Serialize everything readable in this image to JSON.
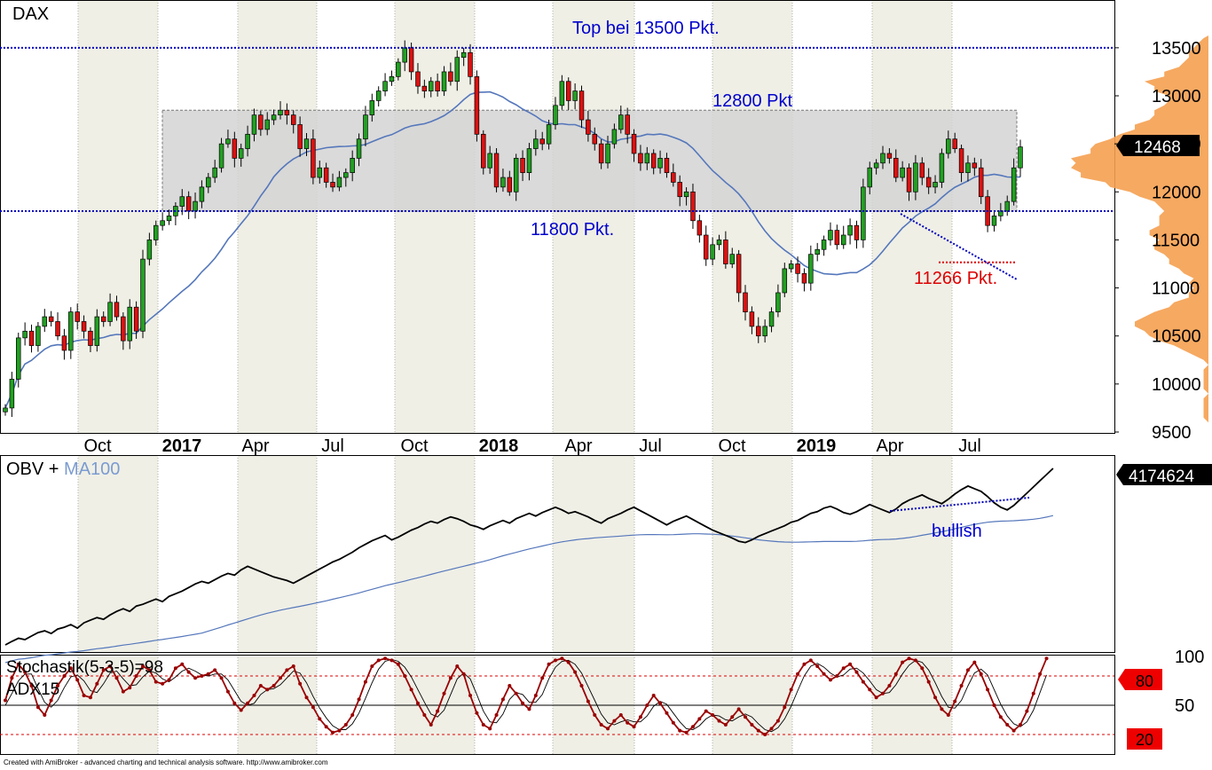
{
  "title": "DAX",
  "footer": "Created with AmiBroker - advanced charting and technical analysis software. http://www.amibroker.com",
  "colors": {
    "bull": "#22a022",
    "bear": "#dd1111",
    "ma": "#5577bb",
    "level_line": "#0000bb",
    "zone_fill": "#d4d4d4",
    "stochastic": "#990000",
    "profile": "#f5a050",
    "annotation_blue": "#0000cc",
    "annotation_red": "#dd0000"
  },
  "chart_data": [
    {
      "panel": "price",
      "type": "candlestick",
      "title": "DAX",
      "ylim": [
        9500,
        13700
      ],
      "y_ticks": [
        9500,
        10000,
        10500,
        11000,
        11500,
        12000,
        12500,
        13000,
        13500
      ],
      "x_labels": [
        "Oct",
        "2017",
        "Apr",
        "Jul",
        "Oct",
        "2018",
        "Apr",
        "Jul",
        "Oct",
        "2019",
        "Apr",
        "Jul"
      ],
      "x_labels_bold": [
        "2017",
        "2018",
        "2019"
      ],
      "last_value": "12468",
      "levels": [
        {
          "value": 13500,
          "label": "Top bei 13500 Pkt."
        },
        {
          "value": 11800,
          "label": "11800 Pkt."
        }
      ],
      "zone": {
        "low": 11800,
        "high": 12850,
        "label": "12800 Pkt"
      },
      "support_label": {
        "value": 11266,
        "label": "11266 Pkt."
      },
      "series": [
        {
          "name": "weekly_close",
          "values": [
            9750,
            10050,
            10480,
            10550,
            10400,
            10600,
            10700,
            10650,
            10500,
            10350,
            10750,
            10650,
            10550,
            10400,
            10700,
            10650,
            10850,
            10700,
            10450,
            10800,
            10550,
            11300,
            11500,
            11650,
            11700,
            11750,
            11850,
            11950,
            11800,
            11900,
            12050,
            12150,
            12250,
            12500,
            12550,
            12350,
            12450,
            12600,
            12800,
            12650,
            12750,
            12800,
            12850,
            12800,
            12700,
            12450,
            12550,
            12150,
            12250,
            12100,
            12050,
            12150,
            12200,
            12350,
            12550,
            12800,
            12950,
            13050,
            13150,
            13200,
            13350,
            13500,
            13250,
            13100,
            13050,
            13150,
            13050,
            13250,
            13150,
            13400,
            13450,
            13200,
            12600,
            12250,
            12400,
            12050,
            12150,
            12000,
            12350,
            12200,
            12450,
            12550,
            12500,
            12700,
            12900,
            13150,
            12950,
            13050,
            12750,
            12600,
            12500,
            12300,
            12500,
            12650,
            12800,
            12600,
            12400,
            12300,
            12400,
            12250,
            12350,
            12200,
            12100,
            11950,
            12000,
            11700,
            11550,
            11300,
            11450,
            11500,
            11250,
            11350,
            10950,
            10750,
            10600,
            10500,
            10600,
            10750,
            10950,
            11200,
            11250,
            11150,
            11050,
            11350,
            11400,
            11500,
            11600,
            11450,
            11550,
            11650,
            11500,
            12050,
            12250,
            12300,
            12400,
            12350,
            12150,
            12250,
            12000,
            12300,
            12150,
            12050,
            12100,
            12400,
            12550,
            12450,
            12200,
            12300,
            12250,
            11950,
            11650,
            11750,
            11800,
            11900,
            12250,
            12468
          ]
        }
      ]
    },
    {
      "panel": "obv",
      "type": "line",
      "title": "OBV",
      "title_suffix": "MA100",
      "last_value": "4174624",
      "annotation": "bullish",
      "series": [
        {
          "name": "OBV",
          "values": [
            20,
            28,
            35,
            32,
            40,
            48,
            52,
            46,
            56,
            60,
            66,
            58,
            70,
            76,
            82,
            78,
            88,
            96,
            102,
            96,
            108,
            112,
            118,
            124,
            118,
            130,
            136,
            142,
            150,
            158,
            164,
            160,
            168,
            176,
            182,
            178,
            190,
            198,
            192,
            186,
            180,
            174,
            170,
            166,
            160,
            168,
            176,
            184,
            192,
            200,
            208,
            214,
            222,
            230,
            240,
            248,
            256,
            262,
            268,
            258,
            264,
            272,
            280,
            286,
            294,
            300,
            296,
            304,
            310,
            306,
            300,
            292,
            288,
            282,
            290,
            296,
            302,
            296,
            306,
            312,
            318,
            312,
            320,
            326,
            332,
            326,
            318,
            322,
            316,
            310,
            302,
            296,
            306,
            312,
            318,
            326,
            332,
            324,
            316,
            308,
            300,
            292,
            300,
            306,
            312,
            304,
            296,
            288,
            280,
            274,
            268,
            262,
            255,
            252,
            258,
            266,
            272,
            278,
            284,
            290,
            298,
            302,
            310,
            318,
            322,
            330,
            334,
            328,
            320,
            316,
            322,
            330,
            338,
            332,
            326,
            320,
            328,
            340,
            348,
            354,
            360,
            352,
            346,
            340,
            350,
            362,
            372,
            380,
            374,
            368,
            356,
            342,
            332,
            326,
            336,
            350,
            364,
            378,
            392,
            406,
            420
          ]
        }
      ]
    },
    {
      "panel": "oscillator",
      "type": "line",
      "title": "Stochastik(5-3-5)=98",
      "subtitle": "ADX15",
      "ylim": [
        0,
        100
      ],
      "y_ticks": [
        50,
        100
      ],
      "badges": [
        "80",
        "20"
      ],
      "levels": [
        80,
        50,
        20
      ],
      "series": [
        {
          "name": "stochastic",
          "values": [
            55,
            78,
            92,
            84,
            70,
            48,
            40,
            55,
            70,
            80,
            88,
            76,
            60,
            58,
            72,
            86,
            90,
            78,
            64,
            68,
            80,
            90,
            86,
            74,
            72,
            76,
            88,
            92,
            84,
            78,
            80,
            82,
            86,
            78,
            64,
            52,
            45,
            52,
            60,
            70,
            66,
            70,
            78,
            86,
            90,
            72,
            58,
            48,
            36,
            28,
            22,
            24,
            30,
            40,
            56,
            74,
            90,
            96,
            98,
            96,
            92,
            80,
            66,
            52,
            40,
            30,
            44,
            62,
            78,
            90,
            82,
            60,
            42,
            30,
            26,
            40,
            56,
            70,
            62,
            52,
            46,
            60,
            78,
            92,
            96,
            98,
            94,
            84,
            70,
            54,
            40,
            30,
            26,
            34,
            40,
            32,
            28,
            38,
            50,
            60,
            52,
            42,
            32,
            24,
            22,
            28,
            36,
            44,
            40,
            34,
            30,
            38,
            46,
            38,
            30,
            24,
            20,
            26,
            34,
            48,
            66,
            82,
            92,
            96,
            90,
            82,
            76,
            80,
            88,
            92,
            84,
            74,
            66,
            58,
            62,
            70,
            82,
            94,
            98,
            96,
            88,
            74,
            58,
            46,
            40,
            54,
            70,
            86,
            94,
            82,
            66,
            50,
            38,
            30,
            24,
            30,
            44,
            62,
            82,
            98
          ]
        },
        {
          "name": "signal",
          "values": [
            50,
            62,
            75,
            82,
            82,
            67,
            53,
            48,
            55,
            68,
            79,
            81,
            75,
            65,
            63,
            72,
            83,
            85,
            77,
            70,
            71,
            79,
            85,
            83,
            77,
            74,
            79,
            85,
            88,
            85,
            81,
            80,
            82,
            82,
            76,
            65,
            54,
            50,
            52,
            61,
            66,
            67,
            71,
            78,
            85,
            83,
            73,
            59,
            47,
            37,
            29,
            25,
            25,
            31,
            42,
            57,
            73,
            87,
            95,
            97,
            95,
            89,
            79,
            66,
            53,
            41,
            38,
            45,
            61,
            77,
            83,
            77,
            61,
            44,
            33,
            32,
            41,
            56,
            63,
            61,
            53,
            53,
            61,
            77,
            89,
            95,
            96,
            92,
            83,
            69,
            55,
            41,
            32,
            30,
            33,
            35,
            33,
            33,
            39,
            49,
            54,
            51,
            42,
            33,
            26,
            25,
            29,
            36,
            40,
            39,
            35,
            34,
            38,
            41,
            38,
            31,
            25,
            23,
            27,
            36,
            49,
            65,
            80,
            90,
            93,
            89,
            83,
            79,
            81,
            87,
            88,
            83,
            75,
            66,
            62,
            63,
            71,
            82,
            91,
            96,
            94,
            86,
            73,
            59,
            48,
            47,
            55,
            70,
            83,
            87,
            81,
            66,
            51,
            39,
            31,
            28,
            33,
            45,
            63,
            81
          ]
        }
      ]
    }
  ]
}
